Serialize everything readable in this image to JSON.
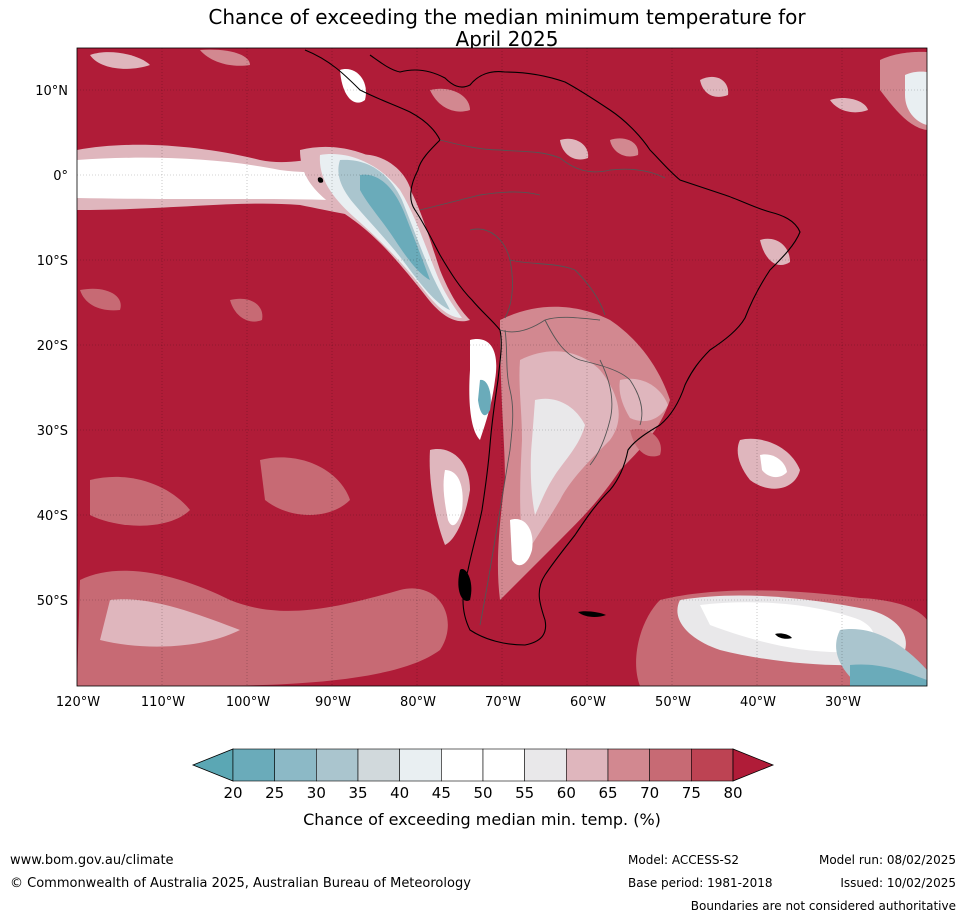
{
  "title_line1": "Chance of exceeding the median minimum temperature for",
  "title_line2": "April 2025",
  "map": {
    "lat_labels": [
      "10°N",
      "0°",
      "10°S",
      "20°S",
      "30°S",
      "40°S",
      "50°S"
    ],
    "lon_labels": [
      "120°W",
      "110°W",
      "100°W",
      "90°W",
      "80°W",
      "70°W",
      "60°W",
      "50°W",
      "40°W",
      "30°W"
    ]
  },
  "colorbar": {
    "ticks": [
      "20",
      "25",
      "30",
      "35",
      "40",
      "45",
      "50",
      "55",
      "60",
      "65",
      "70",
      "75",
      "80"
    ],
    "colors": [
      "#5ba7b4",
      "#6aabba",
      "#8cb9c6",
      "#aac5ce",
      "#d1d9dc",
      "#e9eff2",
      "#ffffff",
      "#ffffff",
      "#e9e8ea",
      "#dfb6bd",
      "#d28890",
      "#c76a74",
      "#bd4353",
      "#b01c38"
    ],
    "label": "Chance of exceeding median min. temp. (%)"
  },
  "footer": {
    "website": "www.bom.gov.au/climate",
    "copyright": "© Commonwealth of Australia 2025, Australian Bureau of Meteorology",
    "model": "Model: ACCESS-S2",
    "base_period": "Base period: 1981-2018",
    "model_run": "Model run: 08/02/2025",
    "issued": "Issued: 10/02/2025",
    "disclaimer": "Boundaries are not considered authoritative"
  }
}
